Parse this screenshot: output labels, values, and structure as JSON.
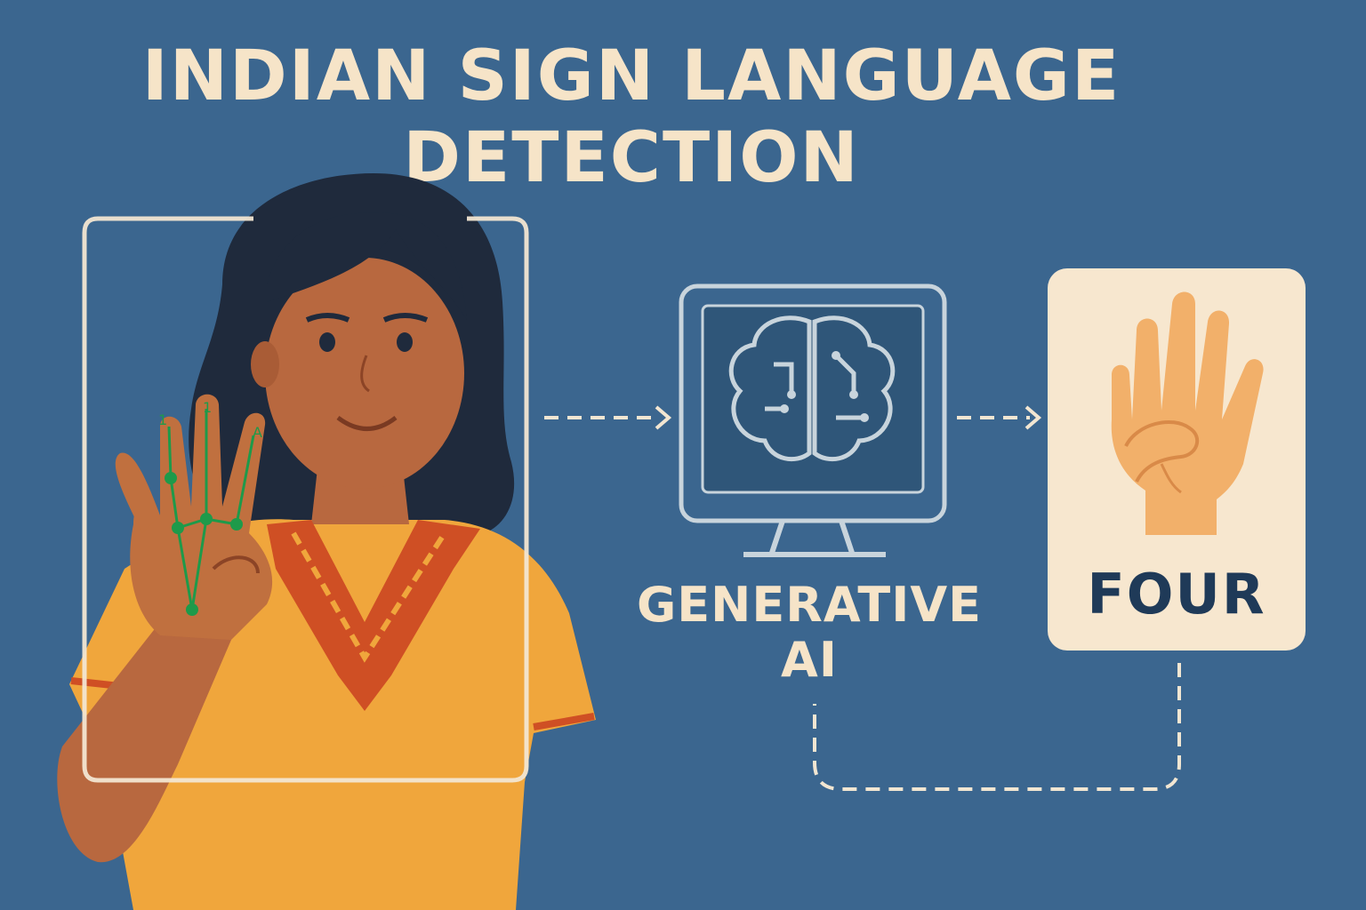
{
  "title": {
    "line1": "INDIAN SIGN LANGUAGE",
    "line2": "DETECTION"
  },
  "model": {
    "label_line1": "GENERATIVE",
    "label_line2": "AI",
    "icon": "brain-circuit-icon"
  },
  "result": {
    "word": "FOUR",
    "icon": "four-fingers-hand-icon"
  },
  "finger_markers": [
    "1",
    "1",
    "A"
  ],
  "colors": {
    "background": "#3b668f",
    "title": "#f6e4c8",
    "card": "#f7e7cf",
    "result_text": "#1f3a58",
    "skin": "#b8683f",
    "shirt": "#f0a63c",
    "hair": "#1f2a3c",
    "landmarks": "#1e9a4a"
  }
}
